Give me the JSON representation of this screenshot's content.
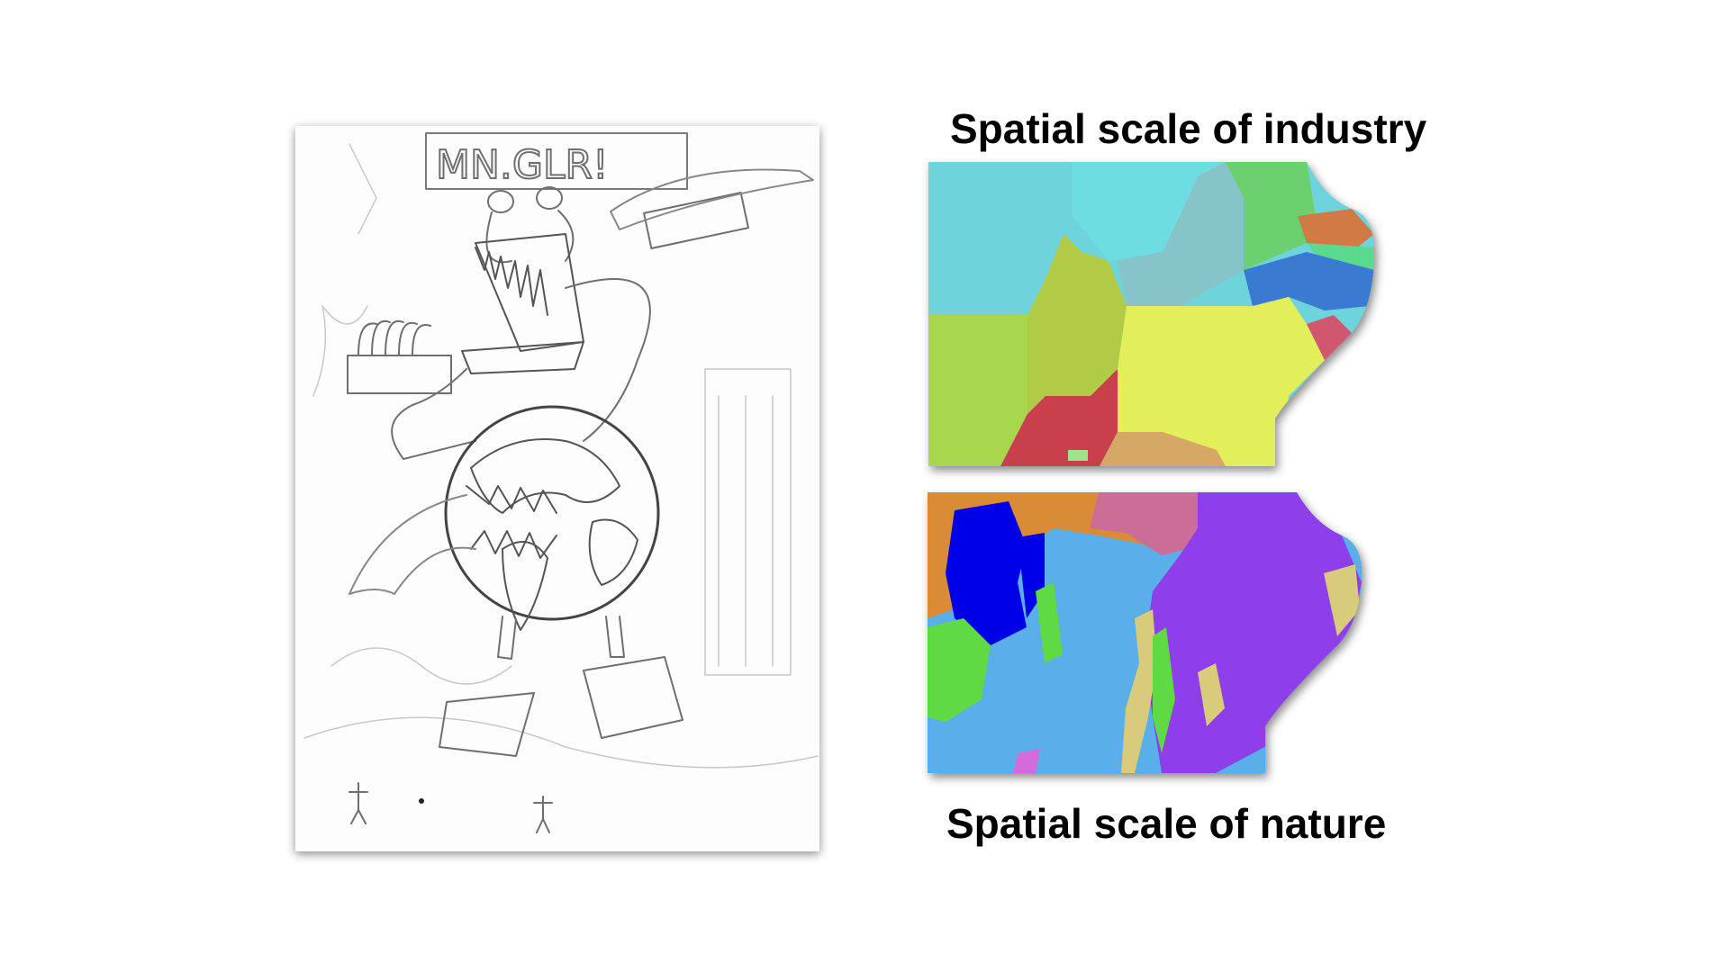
{
  "slide": {
    "caption_industry": "Spatial scale of industry",
    "caption_nature": "Spatial scale of nature"
  },
  "sketch": {
    "sign_text": "MN.GLR!"
  },
  "colors": {
    "background": "#ffffff",
    "industry_regions": [
      "#6fd3dc",
      "#6ddde2",
      "#86c4c8",
      "#6bd06f",
      "#d17a45",
      "#5ad98f",
      "#3a7ad0",
      "#a8d64c",
      "#b1cb44",
      "#e3ef5a",
      "#c9404c",
      "#d5a865",
      "#d0576e"
    ],
    "nature_regions": [
      "#5aaeea",
      "#0000e8",
      "#d98b35",
      "#cb6d96",
      "#8e3fea",
      "#d8cc7a",
      "#5fd944",
      "#d36cd8"
    ]
  }
}
